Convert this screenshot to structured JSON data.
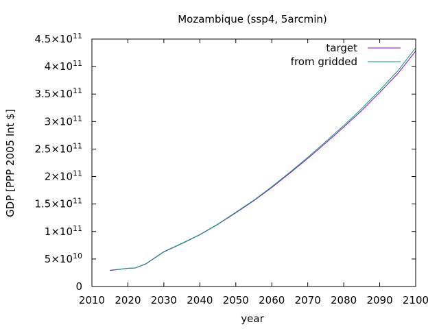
{
  "chart_data": {
    "type": "line",
    "title": "Mozambique (ssp4, 5arcmin)",
    "xlabel": "year",
    "ylabel": "GDP [PPP 2005 Int $]",
    "xlim": [
      2010,
      2100
    ],
    "ylim": [
      0,
      450000000000
    ],
    "grid": false,
    "legend_position": "top-right",
    "x_ticks": [
      {
        "value": 2010,
        "label": "2010"
      },
      {
        "value": 2020,
        "label": "2020"
      },
      {
        "value": 2030,
        "label": "2030"
      },
      {
        "value": 2040,
        "label": "2040"
      },
      {
        "value": 2050,
        "label": "2050"
      },
      {
        "value": 2060,
        "label": "2060"
      },
      {
        "value": 2070,
        "label": "2070"
      },
      {
        "value": 2080,
        "label": "2080"
      },
      {
        "value": 2090,
        "label": "2090"
      },
      {
        "value": 2100,
        "label": "2100"
      }
    ],
    "y_ticks": [
      {
        "value": 0,
        "mant": "0",
        "exp": ""
      },
      {
        "value": 50000000000,
        "mant": "5×10",
        "exp": "10"
      },
      {
        "value": 100000000000,
        "mant": "1×10",
        "exp": "11"
      },
      {
        "value": 150000000000,
        "mant": "1.5×10",
        "exp": "11"
      },
      {
        "value": 200000000000,
        "mant": "2×10",
        "exp": "11"
      },
      {
        "value": 250000000000,
        "mant": "2.5×10",
        "exp": "11"
      },
      {
        "value": 300000000000,
        "mant": "3×10",
        "exp": "11"
      },
      {
        "value": 350000000000,
        "mant": "3.5×10",
        "exp": "11"
      },
      {
        "value": 400000000000,
        "mant": "4×10",
        "exp": "11"
      },
      {
        "value": 450000000000,
        "mant": "4.5×10",
        "exp": "11"
      }
    ],
    "series": [
      {
        "name": "target",
        "color": "#9400d3",
        "x": [
          2015,
          2020,
          2022,
          2025,
          2030,
          2035,
          2040,
          2045,
          2050,
          2055,
          2060,
          2065,
          2070,
          2075,
          2080,
          2085,
          2090,
          2095,
          2100
        ],
        "y": [
          29000000000,
          33000000000,
          33500000000,
          41000000000,
          63000000000,
          78000000000,
          94000000000,
          113000000000,
          134000000000,
          156000000000,
          180000000000,
          206000000000,
          233000000000,
          261000000000,
          290000000000,
          320000000000,
          353000000000,
          387000000000,
          428000000000
        ]
      },
      {
        "name": "from gridded",
        "color": "#009e73",
        "x": [
          2015,
          2020,
          2022,
          2025,
          2030,
          2035,
          2040,
          2045,
          2050,
          2055,
          2060,
          2065,
          2070,
          2075,
          2080,
          2085,
          2090,
          2095,
          2100
        ],
        "y": [
          29500000000,
          33200000000,
          33700000000,
          41500000000,
          63500000000,
          78500000000,
          94500000000,
          113500000000,
          135000000000,
          157000000000,
          181500000000,
          207500000000,
          235000000000,
          263500000000,
          292500000000,
          323500000000,
          357000000000,
          392000000000,
          434000000000
        ]
      }
    ]
  }
}
